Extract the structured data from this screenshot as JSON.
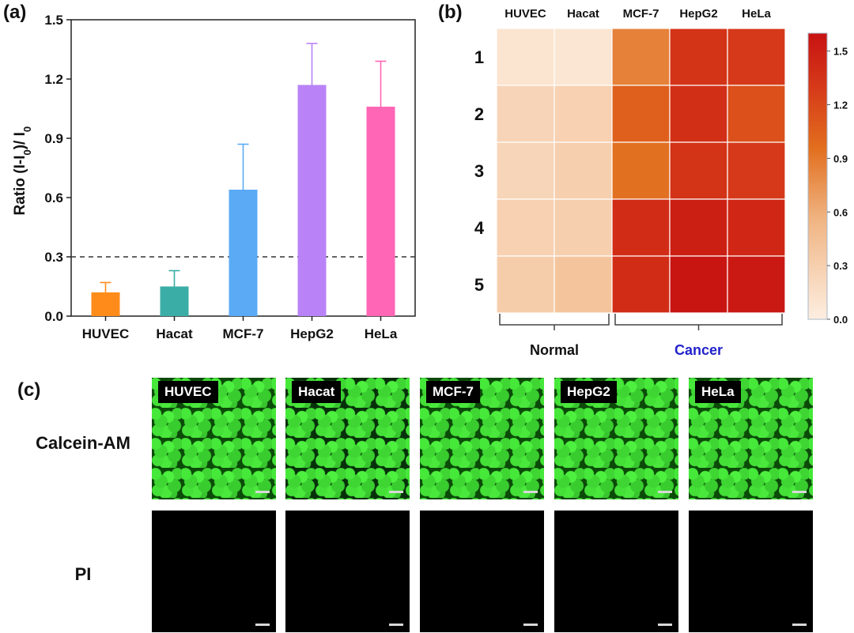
{
  "panels": {
    "a_label": "(a)",
    "b_label": "(b)",
    "c_label": "(c)"
  },
  "chart_data": [
    {
      "type": "bar",
      "categories": [
        "HUVEC",
        "Hacat",
        "MCF-7",
        "HepG2",
        "HeLa"
      ],
      "values": [
        0.12,
        0.15,
        0.64,
        1.17,
        1.06
      ],
      "errors": [
        0.05,
        0.08,
        0.23,
        0.21,
        0.23
      ],
      "colors": [
        "#ff8c1a",
        "#3aaea6",
        "#5aaaf5",
        "#b983f7",
        "#ff66b5"
      ],
      "ylabel": "Ratio (I-I0)/ I0",
      "ylim": [
        0,
        1.5
      ],
      "yticks": [
        "0.0",
        "0.3",
        "0.6",
        "0.9",
        "1.2",
        "1.5"
      ],
      "reference_line": 0.3,
      "grid": false
    },
    {
      "type": "heatmap",
      "columns": [
        "HUVEC",
        "Hacat",
        "MCF-7",
        "HepG2",
        "HeLa"
      ],
      "rows": [
        "1",
        "2",
        "3",
        "4",
        "5"
      ],
      "values": [
        [
          0.1,
          0.08,
          0.85,
          1.35,
          1.3
        ],
        [
          0.25,
          0.28,
          1.05,
          1.38,
          1.15
        ],
        [
          0.24,
          0.3,
          0.95,
          1.35,
          1.3
        ],
        [
          0.28,
          0.3,
          1.4,
          1.5,
          1.45
        ],
        [
          0.32,
          0.4,
          1.4,
          1.58,
          1.55
        ]
      ],
      "colorbar": {
        "min": 0.0,
        "max": 1.6,
        "ticks": [
          "0.0",
          "0.3",
          "0.6",
          "0.9",
          "1.2",
          "1.5"
        ]
      },
      "groups": [
        {
          "label": "Normal",
          "color": "#111111"
        },
        {
          "label": "Cancer",
          "color": "#2222cc"
        }
      ]
    }
  ],
  "microscopy": {
    "rows": [
      {
        "label": "Calcein-AM",
        "fluorescence": "green"
      },
      {
        "label": "PI",
        "fluorescence": "none"
      }
    ],
    "columns": [
      "HUVEC",
      "Hacat",
      "MCF-7",
      "HepG2",
      "HeLa"
    ]
  }
}
